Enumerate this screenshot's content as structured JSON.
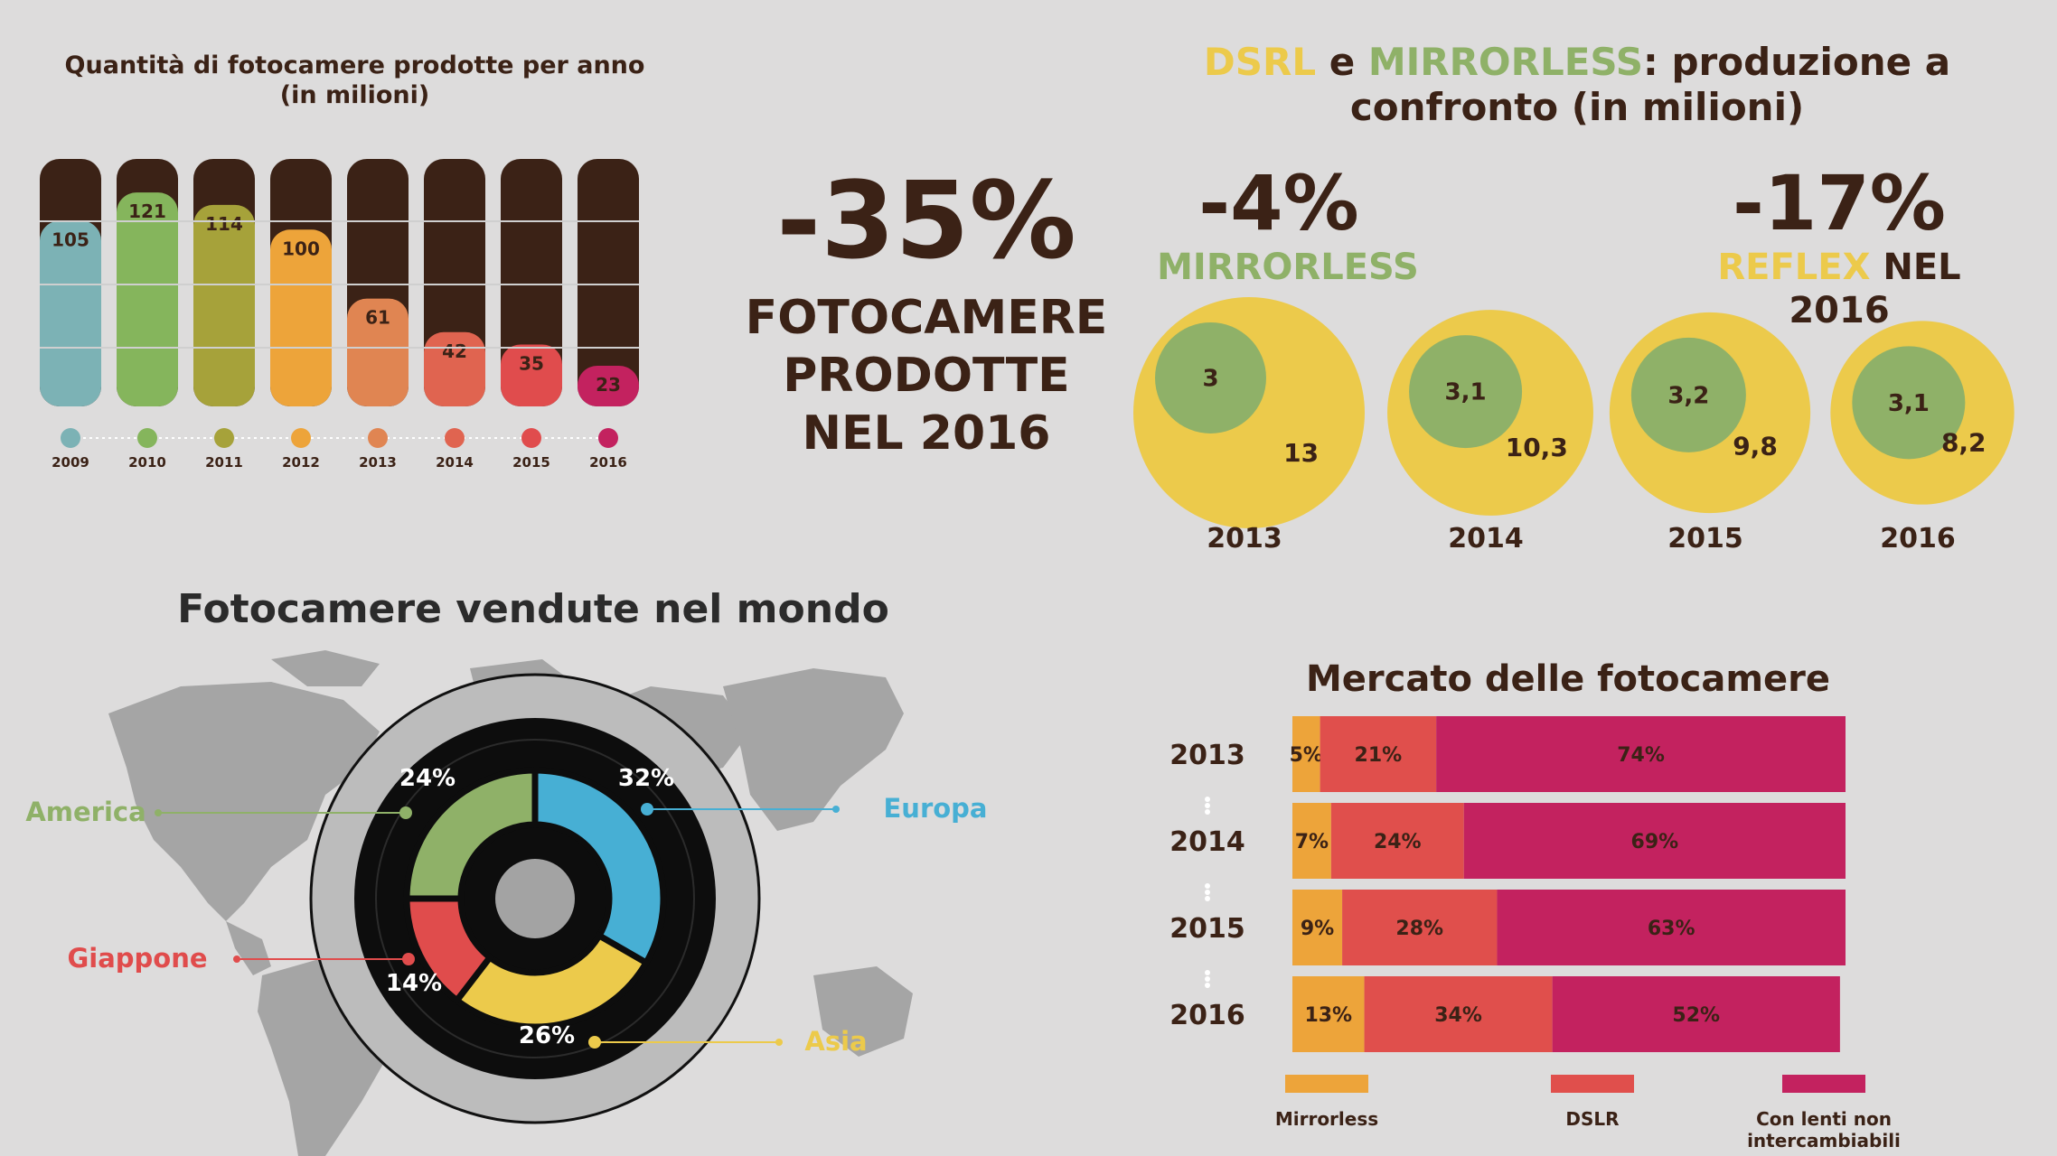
{
  "colors": {
    "background": "#dddcdc",
    "dark": "#3b2216",
    "yellow": "#ecca4b",
    "green": "#8fb168",
    "mirrorless": "#eda43a",
    "dslr": "#e04f4c",
    "compact": "#c3225f"
  },
  "production": {
    "title_line1": "Quantità di fotocamere prodotte per anno",
    "title_line2": "(in milioni)",
    "chart_data": {
      "type": "bar",
      "title": "Quantità di fotocamere prodotte per anno (in milioni)",
      "categories": [
        "2009",
        "2010",
        "2011",
        "2012",
        "2013",
        "2014",
        "2015",
        "2016"
      ],
      "values": [
        105,
        121,
        114,
        100,
        61,
        42,
        35,
        23
      ],
      "colors": [
        "#7cb2b5",
        "#85b55c",
        "#a6a23a",
        "#eda43a",
        "#e08552",
        "#e06450",
        "#e04c4d",
        "#c3225f"
      ],
      "ylim": [
        0,
        140
      ]
    }
  },
  "headline": {
    "value": "-35%",
    "label_line1": "FOTOCAMERE",
    "label_line2": "PRODOTTE",
    "label_line3": "NEL 2016"
  },
  "comparison": {
    "title_dsrl": "DSRL",
    "title_e": " e ",
    "title_mirrorless": "MIRRORLESS",
    "title_rest": ": produzione a",
    "title_line2": "confronto (in milioni)",
    "left_pct": "-4%",
    "left_label": "MIRRORLESS",
    "right_pct": "-17%",
    "right_label_reflex": "REFLEX",
    "right_label_nel": " NEL",
    "right_label_year": "2016",
    "chart_data": {
      "type": "bubble",
      "categories": [
        "2013",
        "2014",
        "2015",
        "2016"
      ],
      "series": [
        {
          "name": "MIRRORLESS",
          "values": [
            3,
            3.1,
            3.2,
            3.1
          ],
          "labels": [
            "3",
            "3,1",
            "3,2",
            "3,1"
          ]
        },
        {
          "name": "REFLEX",
          "values": [
            13,
            10.3,
            9.8,
            8.2
          ],
          "labels": [
            "13",
            "10,3",
            "9,8",
            "8,2"
          ]
        }
      ]
    }
  },
  "world": {
    "title": "Fotocamere vendute nel mondo",
    "chart_data": {
      "type": "pie",
      "title": "Fotocamere vendute nel mondo",
      "categories": [
        "Europa",
        "Asia",
        "Giappone",
        "America"
      ],
      "values": [
        32,
        26,
        14,
        24
      ],
      "labels": [
        "32%",
        "26%",
        "14%",
        "24%"
      ],
      "colors": [
        "#47afd4",
        "#ecca4b",
        "#e04c4c",
        "#8fb168"
      ]
    }
  },
  "market": {
    "title": "Mercato delle fotocamere",
    "chart_data": {
      "type": "bar",
      "orientation": "horizontal-stacked-100",
      "title": "Mercato delle fotocamere",
      "categories": [
        "2013",
        "2014",
        "2015",
        "2016"
      ],
      "series": [
        {
          "name": "Mirrorless",
          "values": [
            5,
            7,
            9,
            13
          ]
        },
        {
          "name": "DSLR",
          "values": [
            21,
            24,
            28,
            34
          ]
        },
        {
          "name": "Con lenti non intercambiabili",
          "values": [
            74,
            69,
            63,
            52
          ]
        }
      ]
    },
    "legend": {
      "mirrorless": "Mirrorless",
      "dslr": "DSLR",
      "compact_line1": "Con lenti non",
      "compact_line2": "intercambiabili"
    }
  }
}
